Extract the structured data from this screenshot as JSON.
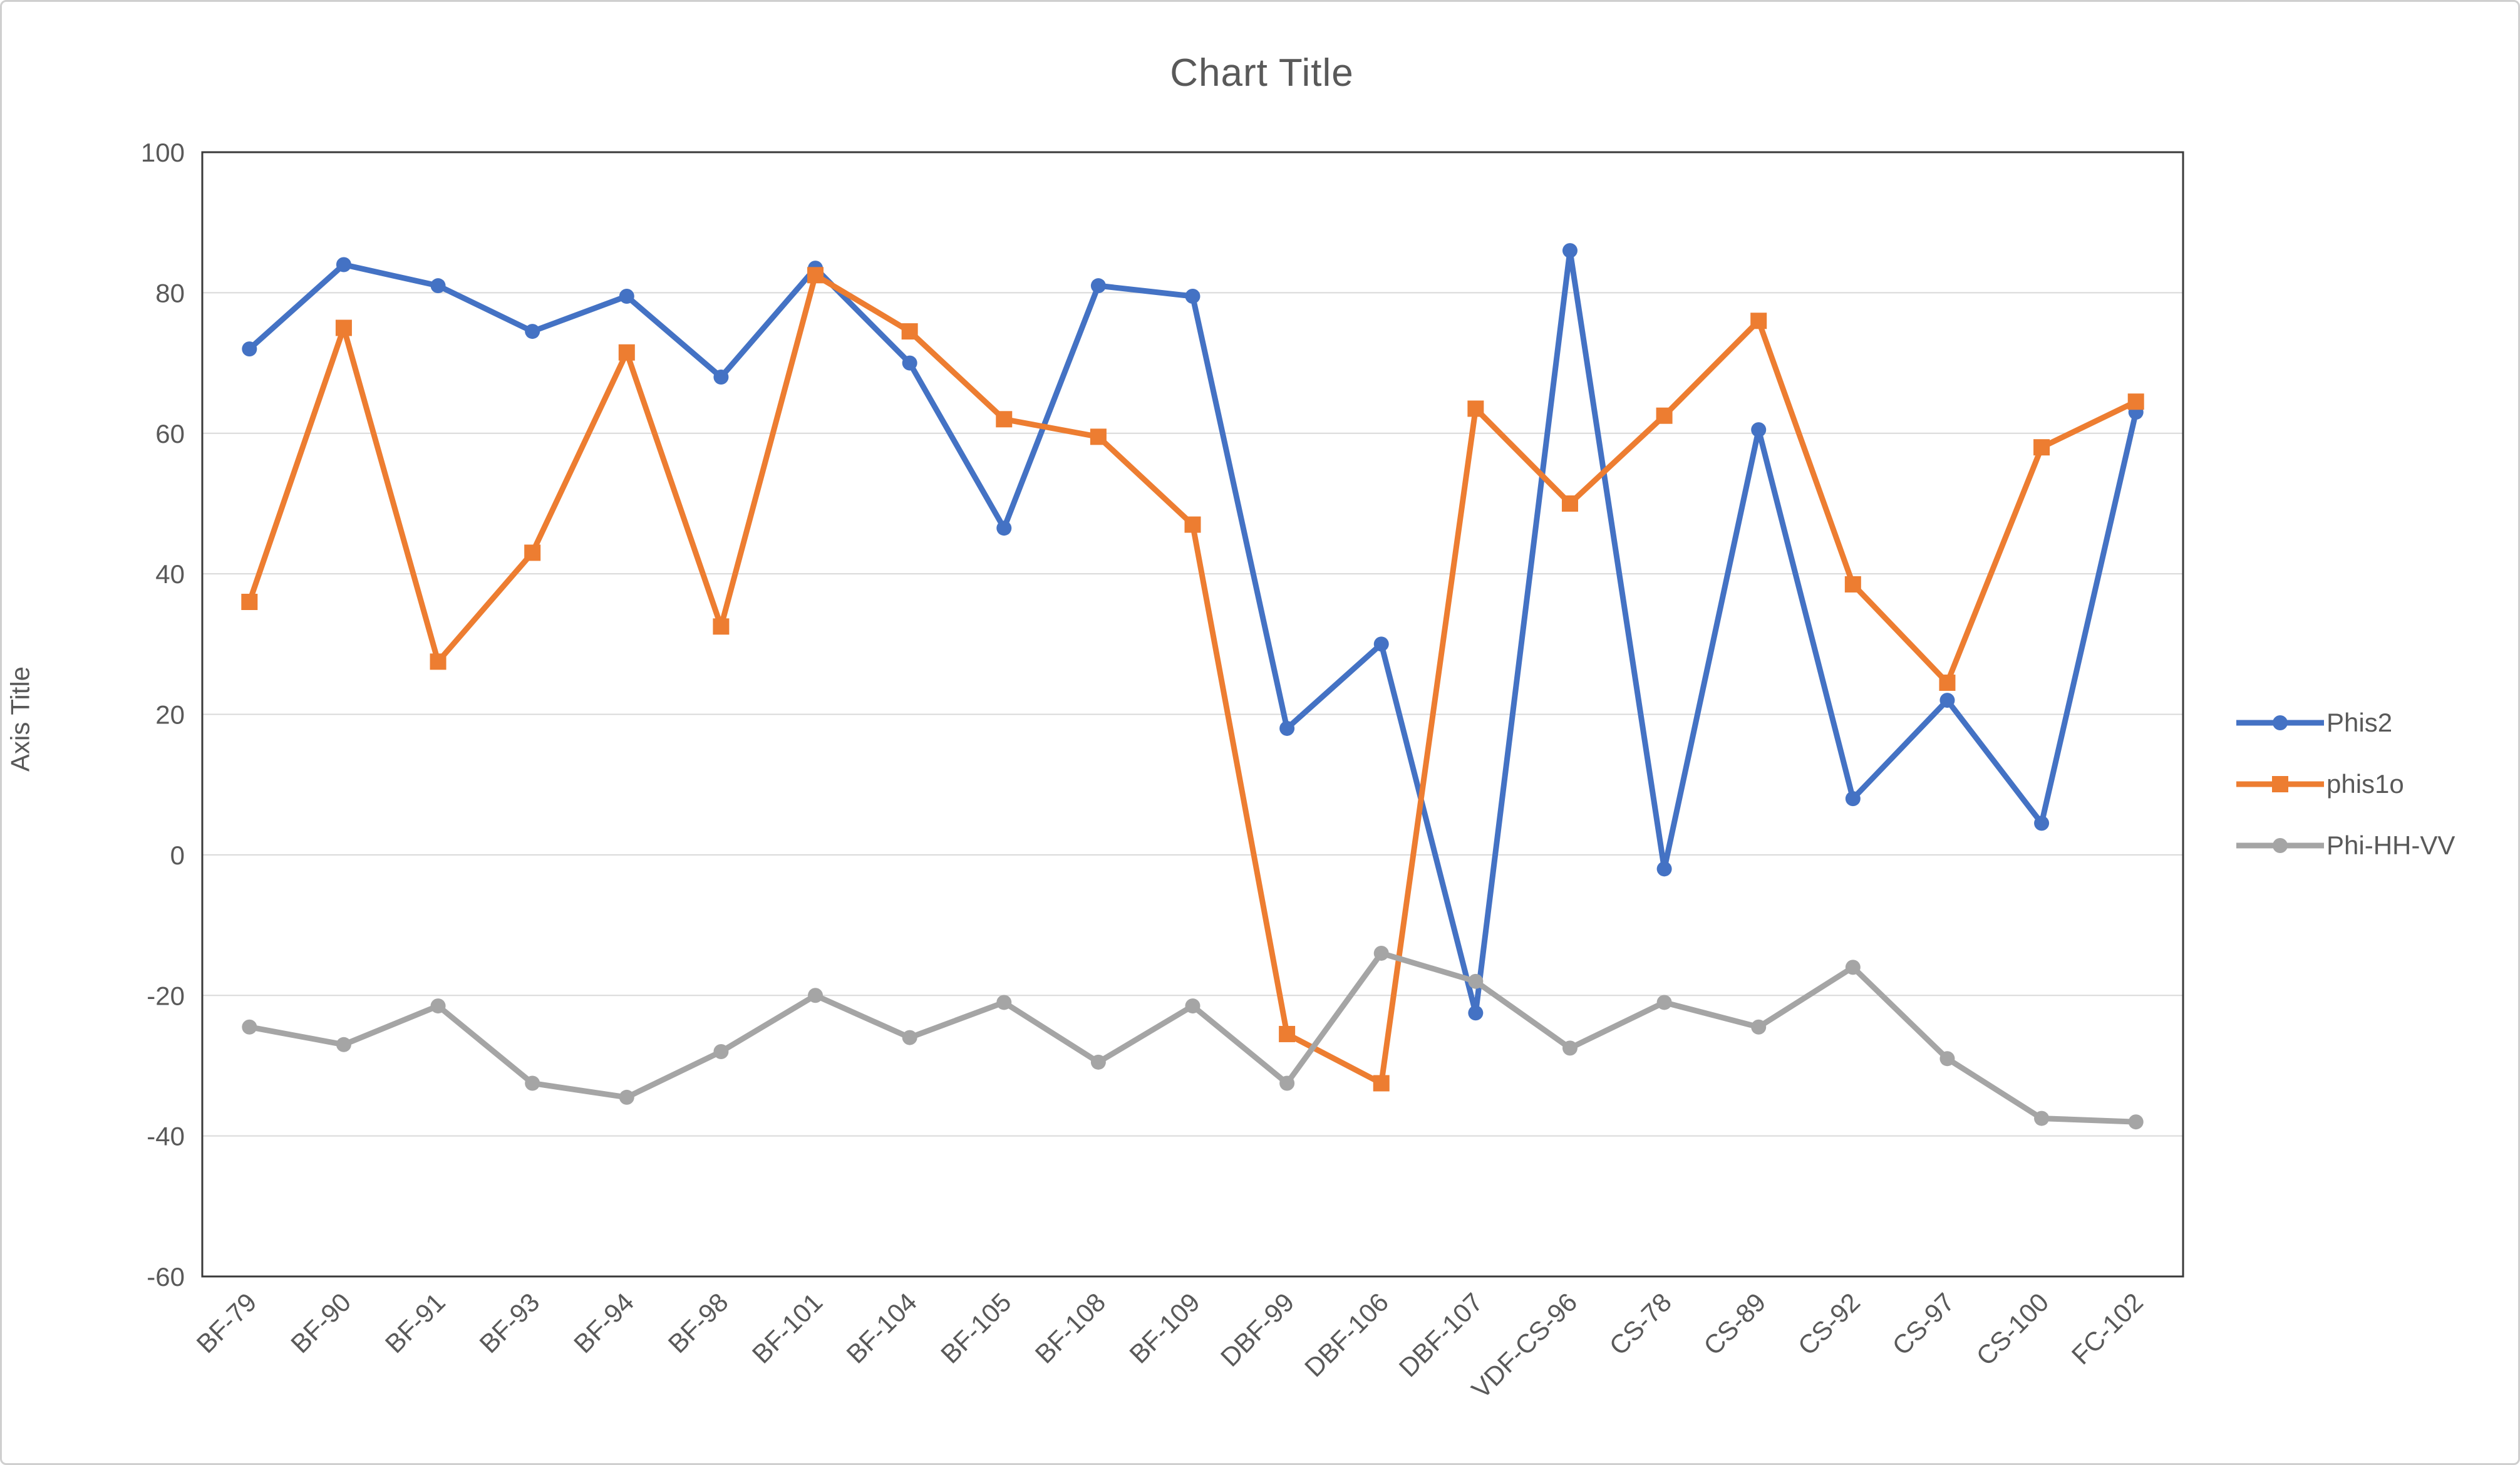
{
  "figure": {
    "background": "#FFFFFF",
    "border_color": "#CFCFCF"
  },
  "chart_data": {
    "type": "line",
    "title": "Chart Title",
    "xlabel": "",
    "ylabel": "Axis Title",
    "ylim": [
      -60,
      100
    ],
    "yticks": [
      100,
      80,
      60,
      40,
      20,
      0,
      -20,
      -40,
      -60
    ],
    "grid": true,
    "legend_position": "right",
    "gridline_color": "#D9D9D9",
    "plot_border_color": "#3A3A3A",
    "axis_text_color": "#595959",
    "categories": [
      "BF-79",
      "BF-90",
      "BF-91",
      "BF-93",
      "BF-94",
      "BF-98",
      "BF-101",
      "BF-104",
      "BF-105",
      "BF-108",
      "BF-109",
      "DBF-99",
      "DBF-106",
      "DBF-107",
      "VDF-CS-96",
      "CS-78",
      "CS-89",
      "CS-92",
      "CS-97",
      "CS-100",
      "FC-102"
    ],
    "series": [
      {
        "name": "Phis2",
        "color": "#4472C4",
        "marker": "circle",
        "values": [
          72,
          84,
          81,
          74.5,
          79.5,
          68,
          83.5,
          70,
          46.5,
          81,
          79.5,
          18,
          30,
          -22.5,
          86,
          -2,
          60.5,
          8,
          22,
          4.5,
          63
        ]
      },
      {
        "name": "phis1o",
        "color": "#ED7D31",
        "marker": "square",
        "values": [
          36,
          75,
          27.5,
          43,
          71.5,
          32.5,
          82.5,
          74.5,
          62,
          59.5,
          47,
          -25.5,
          -32.5,
          63.5,
          50,
          62.5,
          76,
          38.5,
          24.5,
          58,
          64.5
        ]
      },
      {
        "name": "Phi-HH-VV",
        "color": "#A5A5A5",
        "marker": "circle",
        "values": [
          -24.5,
          -27,
          -21.5,
          -32.5,
          -34.5,
          -28,
          -20,
          -26,
          -21,
          -29.5,
          -21.5,
          -32.5,
          -14,
          -18,
          -27.5,
          -21,
          -24.5,
          -16,
          -29,
          -37.5,
          -38
        ]
      }
    ]
  }
}
